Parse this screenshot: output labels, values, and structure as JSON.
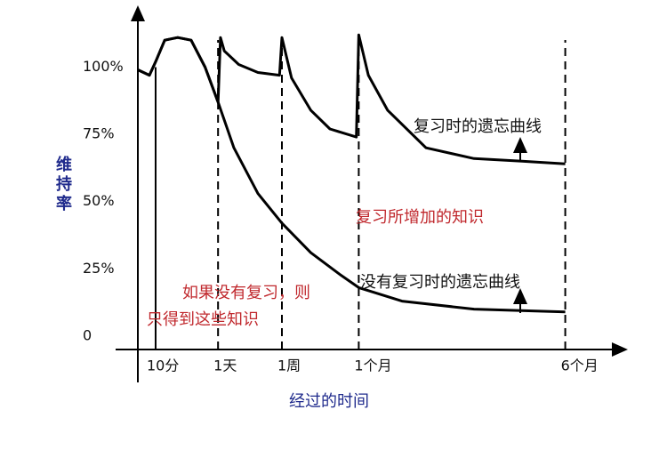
{
  "chart_data": {
    "type": "line",
    "y_label": "维持率",
    "x_label": "经过的时间",
    "xlim": [
      0,
      100
    ],
    "ylim": [
      -5,
      120
    ],
    "xticks": [
      {
        "value": 3.7,
        "label": "10分"
      },
      {
        "value": 16.7,
        "label": "1天"
      },
      {
        "value": 30,
        "label": "1周"
      },
      {
        "value": 46,
        "label": "1个月"
      },
      {
        "value": 89,
        "label": "6个月"
      }
    ],
    "yticks": [
      0,
      {
        "value": 25,
        "label": "25%"
      },
      {
        "value": 50,
        "label": "50%"
      },
      {
        "value": 75,
        "label": "75%"
      },
      {
        "value": 100,
        "label": "100%"
      }
    ],
    "series": [
      {
        "name": "复习时的遗忘曲线",
        "color": "#000000",
        "x": [
          0,
          2.4,
          3.7,
          5.6,
          8.3,
          11.1,
          14,
          16.7,
          17.2,
          18,
          21,
          25,
          29.5,
          30,
          32,
          36,
          40,
          45.5,
          46,
          48,
          52,
          60,
          70,
          80,
          89
        ],
        "values": [
          99,
          97,
          102,
          110,
          111,
          110,
          100,
          87,
          111,
          106,
          101,
          98,
          97,
          111,
          96,
          84,
          77,
          74,
          112,
          97,
          84,
          70,
          66,
          65,
          64
        ]
      },
      {
        "name": "没有复习时的遗忘曲线",
        "color": "#000000",
        "x": [
          0,
          2.4,
          3.7,
          5.6,
          8.3,
          11.1,
          14,
          16.7,
          20,
          25,
          30,
          36,
          42,
          46,
          55,
          70,
          89
        ],
        "values": [
          99,
          97,
          102,
          110,
          111,
          110,
          100,
          87,
          70,
          53,
          42,
          31,
          23,
          18,
          13,
          10,
          9
        ]
      }
    ],
    "annotations": [
      {
        "text": "复习所增加的知识",
        "color": "#c0282d"
      },
      {
        "text": "如果没有复习，则",
        "color": "#c0282d"
      },
      {
        "text": "只得到这些知识",
        "color": "#c0282d"
      }
    ]
  }
}
